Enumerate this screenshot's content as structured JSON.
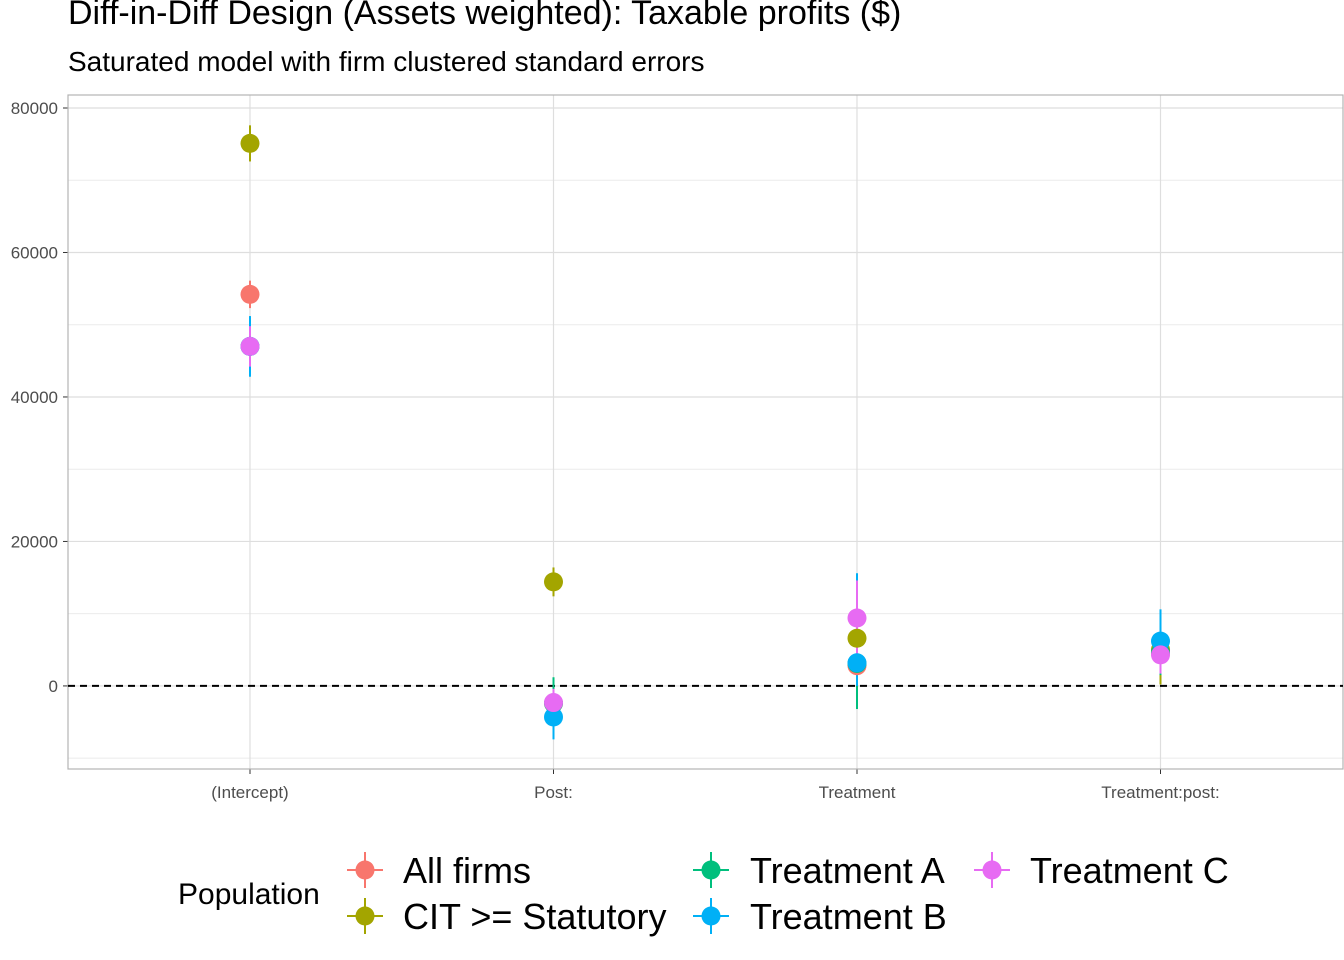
{
  "title": "Diff-in-Diff Design (Assets weighted): Taxable profits  ($)",
  "subtitle": "Saturated model with firm clustered standard errors",
  "colors": {
    "All firms": "#F8766D",
    "CIT >= Statutory": "#A3A500",
    "Treatment A": "#00BF7D",
    "Treatment B": "#00B0F6",
    "Treatment C": "#E76BF3"
  },
  "chart_data": {
    "type": "scatter",
    "subtype": "point-range (coefficient plot)",
    "categories": [
      "(Intercept)",
      "Post:",
      "Treatment",
      "Treatment:post:"
    ],
    "y_ticks": [
      0,
      20000,
      40000,
      60000,
      80000
    ],
    "ylim": [
      -11500,
      81800
    ],
    "reference_line": {
      "y": 0,
      "style": "dashed"
    },
    "grid": true,
    "legend": {
      "title": "Population",
      "position": "bottom"
    },
    "series": [
      {
        "name": "All firms",
        "estimates": [
          54200,
          -2400,
          2800,
          4500
        ],
        "lower": [
          52300,
          -4000,
          200,
          1500
        ],
        "upper": [
          56100,
          -900,
          5400,
          7500
        ]
      },
      {
        "name": "CIT >= Statutory",
        "estimates": [
          75100,
          14400,
          6600,
          5000
        ],
        "lower": [
          72600,
          12400,
          1000,
          200
        ],
        "upper": [
          77600,
          16400,
          12200,
          9800
        ]
      },
      {
        "name": "Treatment A",
        "estimates": [
          47000,
          -2400,
          3100,
          4600
        ],
        "lower": [
          43000,
          -6000,
          -3200,
          1500
        ],
        "upper": [
          51000,
          1200,
          9400,
          7700
        ]
      },
      {
        "name": "Treatment B",
        "estimates": [
          47000,
          -4300,
          3200,
          6200
        ],
        "lower": [
          42800,
          -7400,
          0,
          1800
        ],
        "upper": [
          51200,
          -1200,
          15600,
          10600
        ]
      },
      {
        "name": "Treatment C",
        "estimates": [
          47000,
          -2300,
          9400,
          4300
        ],
        "lower": [
          44200,
          -4200,
          3400,
          1700
        ],
        "upper": [
          49800,
          -400,
          14600,
          6900
        ]
      }
    ]
  }
}
